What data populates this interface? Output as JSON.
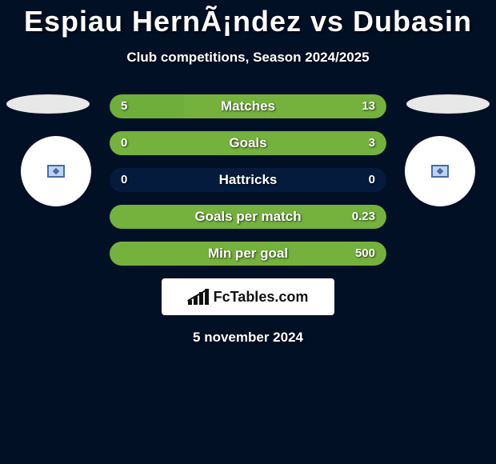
{
  "title": "Espiau HernÃ¡ndez vs Dubasin",
  "subtitle": "Club competitions, Season 2024/2025",
  "date": "5 november 2024",
  "brand": "FcTables.com",
  "colors": {
    "background": "#021026",
    "text": "#ffffff",
    "empty_bar": "#051b3d",
    "left_fill": "#6fae3b",
    "right_fill": "#74b23d",
    "bar_radius": 16
  },
  "stats": [
    {
      "label": "Matches",
      "left_value": "5",
      "right_value": "13",
      "left_pct": 27,
      "right_pct": 73
    },
    {
      "label": "Goals",
      "left_value": "0",
      "right_value": "3",
      "left_pct": 0,
      "right_pct": 100
    },
    {
      "label": "Hattricks",
      "left_value": "0",
      "right_value": "0",
      "left_pct": 0,
      "right_pct": 0
    },
    {
      "label": "Goals per match",
      "left_value": "",
      "right_value": "0.23",
      "left_pct": 0,
      "right_pct": 100
    },
    {
      "label": "Min per goal",
      "left_value": "",
      "right_value": "500",
      "left_pct": 0,
      "right_pct": 100
    }
  ]
}
